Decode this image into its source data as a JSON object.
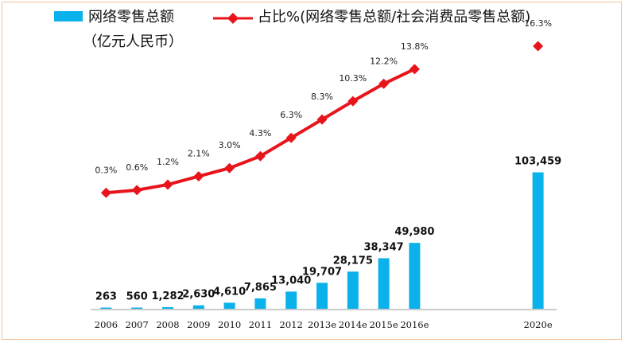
{
  "chart_data": {
    "type": "bar+line",
    "categories": [
      "2006",
      "2007",
      "2008",
      "2009",
      "2010",
      "2011",
      "2012",
      "2013e",
      "2014e",
      "2015e",
      "2016e",
      "",
      "",
      "",
      "2020e"
    ],
    "series": [
      {
        "name": "网络零售总额",
        "name_line2": "（亿元人民币）",
        "type": "bar",
        "color": "#0bb1ea",
        "values": [
          263,
          560,
          1282,
          2630,
          4610,
          7865,
          13040,
          19707,
          28175,
          38347,
          49980,
          null,
          null,
          null,
          103459
        ],
        "labels": [
          "263",
          "560",
          "1,282",
          "2,630",
          "4,610",
          "7,865",
          "13,040",
          "19,707",
          "28,175",
          "38,347",
          "49,980",
          "",
          "",
          "",
          "103,459"
        ]
      },
      {
        "name": "占比%(网络零售总额/社会消费品零售总额)",
        "type": "line",
        "color": "#e8141c",
        "values": [
          0.3,
          0.6,
          1.2,
          2.1,
          3.0,
          4.3,
          6.3,
          8.3,
          10.3,
          12.2,
          13.8,
          null,
          null,
          null,
          16.3
        ],
        "labels": [
          "0.3%",
          "0.6%",
          "1.2%",
          "2.1%",
          "3.0%",
          "4.3%",
          "6.3%",
          "8.3%",
          "10.3%",
          "12.2%",
          "13.8%",
          "",
          "",
          "",
          "16.3%"
        ]
      }
    ],
    "bar_ylim": [
      0,
      210000
    ],
    "line_ylim": [
      -16,
      17
    ],
    "legend_position": "top",
    "grid": false
  }
}
